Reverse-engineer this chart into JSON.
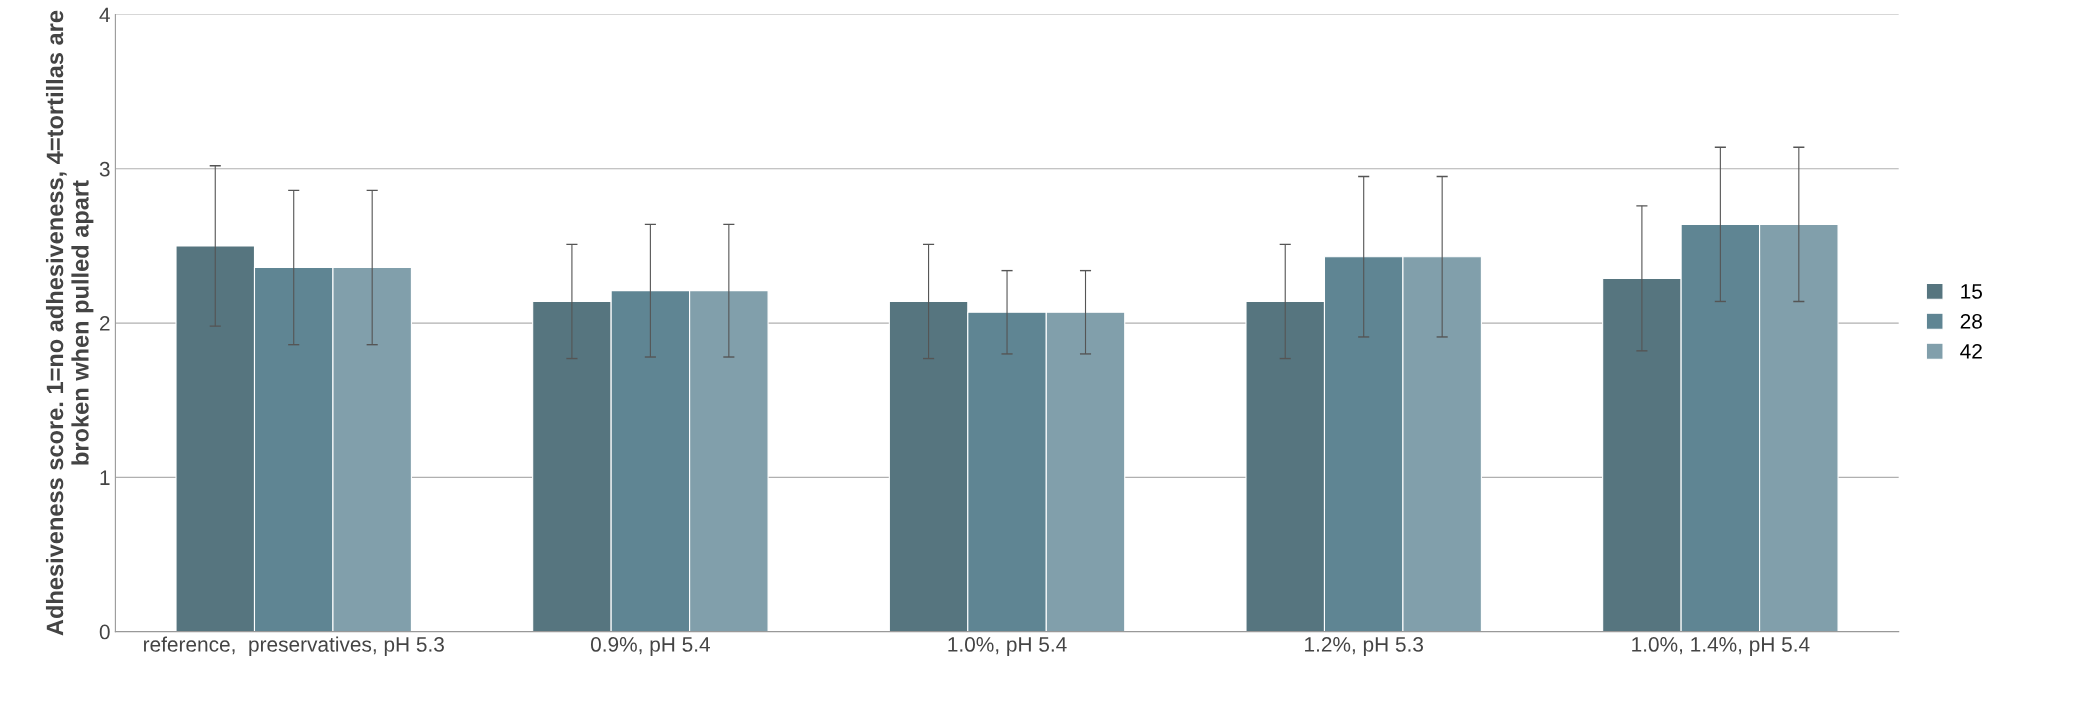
{
  "chart_data": {
    "type": "bar",
    "ylabel": "Adhesiveness score. 1=no adhesiveness, 4=tortillas are broken when pulled apart",
    "categories": [
      "reference,  preservatives, pH 5.3",
      "0.9%, pH 5.4",
      "1.0%, pH 5.4",
      "1.2%, pH 5.3",
      "1.0%, 1.4%, pH 5.4"
    ],
    "series": [
      {
        "name": "15",
        "color": "#56757f",
        "values": [
          2.5,
          2.14,
          2.14,
          2.14,
          2.29
        ],
        "errors": [
          0.52,
          0.37,
          0.37,
          0.37,
          0.47
        ]
      },
      {
        "name": "28",
        "color": "#5f8593",
        "values": [
          2.36,
          2.21,
          2.07,
          2.43,
          2.64
        ],
        "errors": [
          0.5,
          0.43,
          0.27,
          0.52,
          0.5
        ]
      },
      {
        "name": "42",
        "color": "#819fab",
        "values": [
          2.36,
          2.21,
          2.07,
          2.43,
          2.64
        ],
        "errors": [
          0.5,
          0.43,
          0.27,
          0.52,
          0.5
        ]
      }
    ],
    "ylim": [
      0,
      4
    ],
    "yticks": [
      0,
      1,
      2,
      3,
      4
    ],
    "grid": "y",
    "legend": "right"
  }
}
